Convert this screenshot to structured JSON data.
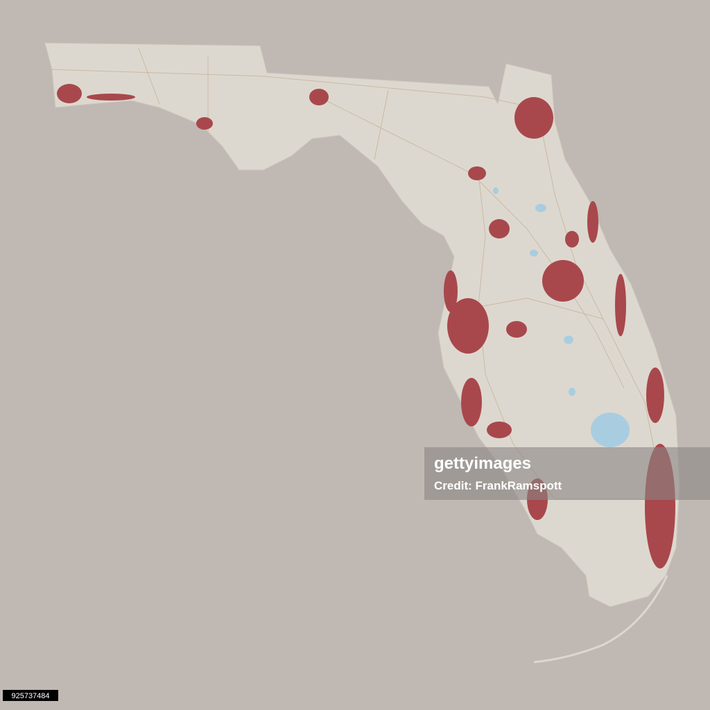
{
  "watermark": {
    "brand": "gettyimages",
    "credit": "Credit: FrankRamspott"
  },
  "image_id": "925737484"
}
